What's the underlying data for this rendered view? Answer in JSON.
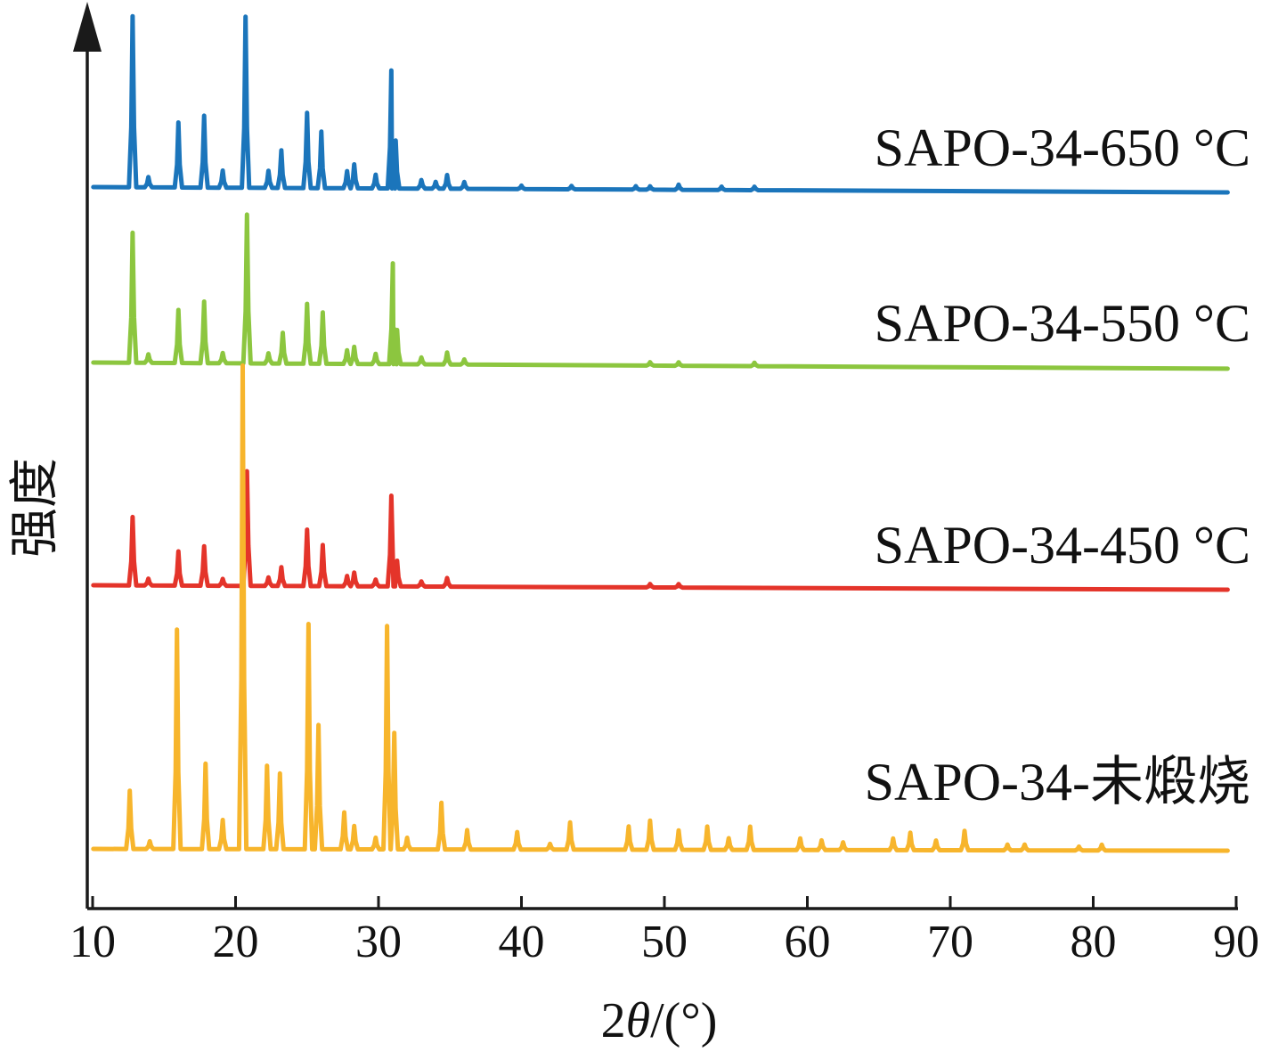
{
  "chart_data": {
    "type": "line",
    "title": "",
    "xlabel": "2θ/(°)",
    "xlabel_parts": {
      "prefix": "2",
      "symbol": "θ",
      "suffix": "/(°)"
    },
    "ylabel": "强度",
    "xlim": [
      10,
      90
    ],
    "x_ticks": [
      10,
      20,
      30,
      40,
      50,
      60,
      70,
      80,
      90
    ],
    "y_ticks_shown": false,
    "grid": false,
    "legend": "series labels printed at the right end of each curve",
    "series": [
      {
        "name": "SAPO-34-650 °C",
        "color": "#1b75bb",
        "peaks": [
          [
            12.8,
            1.0
          ],
          [
            13.9,
            0.06
          ],
          [
            16.0,
            0.38
          ],
          [
            17.8,
            0.42
          ],
          [
            19.1,
            0.1
          ],
          [
            20.7,
            1.0
          ],
          [
            22.3,
            0.1
          ],
          [
            23.2,
            0.22
          ],
          [
            25.0,
            0.44
          ],
          [
            26.0,
            0.33
          ],
          [
            27.8,
            0.1
          ],
          [
            28.3,
            0.14
          ],
          [
            29.8,
            0.08
          ],
          [
            30.9,
            0.69
          ],
          [
            31.2,
            0.28
          ],
          [
            33.0,
            0.05
          ],
          [
            34.0,
            0.04
          ],
          [
            34.8,
            0.08
          ],
          [
            36.0,
            0.04
          ],
          [
            40.0,
            0.02
          ],
          [
            43.5,
            0.02
          ],
          [
            48.0,
            0.02
          ],
          [
            49.0,
            0.02
          ],
          [
            51.0,
            0.03
          ],
          [
            54.0,
            0.02
          ],
          [
            56.3,
            0.02
          ]
        ]
      },
      {
        "name": "SAPO-34-550 °C",
        "color": "#8cc63f",
        "peaks": [
          [
            12.8,
            0.76
          ],
          [
            13.9,
            0.05
          ],
          [
            16.0,
            0.31
          ],
          [
            17.8,
            0.36
          ],
          [
            19.1,
            0.06
          ],
          [
            20.8,
            0.87
          ],
          [
            22.3,
            0.06
          ],
          [
            23.3,
            0.18
          ],
          [
            25.0,
            0.35
          ],
          [
            26.1,
            0.3
          ],
          [
            27.8,
            0.08
          ],
          [
            28.3,
            0.1
          ],
          [
            29.8,
            0.06
          ],
          [
            31.0,
            0.59
          ],
          [
            31.3,
            0.2
          ],
          [
            33.0,
            0.04
          ],
          [
            34.8,
            0.07
          ],
          [
            36.0,
            0.03
          ],
          [
            49.0,
            0.02
          ],
          [
            51.0,
            0.02
          ],
          [
            56.3,
            0.02
          ]
        ]
      },
      {
        "name": "SAPO-34-450 °C",
        "color": "#e4342a",
        "peaks": [
          [
            12.8,
            0.4
          ],
          [
            13.9,
            0.04
          ],
          [
            16.0,
            0.2
          ],
          [
            17.8,
            0.23
          ],
          [
            19.1,
            0.04
          ],
          [
            20.8,
            0.67
          ],
          [
            22.3,
            0.05
          ],
          [
            23.2,
            0.11
          ],
          [
            25.0,
            0.33
          ],
          [
            26.1,
            0.24
          ],
          [
            27.8,
            0.06
          ],
          [
            28.3,
            0.08
          ],
          [
            29.8,
            0.04
          ],
          [
            30.9,
            0.53
          ],
          [
            31.3,
            0.15
          ],
          [
            33.0,
            0.03
          ],
          [
            34.8,
            0.05
          ],
          [
            49.0,
            0.02
          ],
          [
            51.0,
            0.02
          ]
        ]
      },
      {
        "name": "SAPO-34-未煅烧",
        "color": "#f7b52c",
        "peaks": [
          [
            12.6,
            0.3
          ],
          [
            14.0,
            0.04
          ],
          [
            15.9,
            1.13
          ],
          [
            17.9,
            0.44
          ],
          [
            19.1,
            0.15
          ],
          [
            20.5,
            2.49
          ],
          [
            22.2,
            0.43
          ],
          [
            23.1,
            0.39
          ],
          [
            25.1,
            1.16
          ],
          [
            25.8,
            0.64
          ],
          [
            27.6,
            0.19
          ],
          [
            28.3,
            0.12
          ],
          [
            29.8,
            0.06
          ],
          [
            30.6,
            1.15
          ],
          [
            31.1,
            0.6
          ],
          [
            32.0,
            0.06
          ],
          [
            34.4,
            0.24
          ],
          [
            36.2,
            0.1
          ],
          [
            39.7,
            0.09
          ],
          [
            42.0,
            0.03
          ],
          [
            43.4,
            0.14
          ],
          [
            47.5,
            0.12
          ],
          [
            49.0,
            0.15
          ],
          [
            51.0,
            0.1
          ],
          [
            53.0,
            0.12
          ],
          [
            54.5,
            0.06
          ],
          [
            56.0,
            0.12
          ],
          [
            59.5,
            0.06
          ],
          [
            61.0,
            0.05
          ],
          [
            62.5,
            0.04
          ],
          [
            66.0,
            0.06
          ],
          [
            67.2,
            0.09
          ],
          [
            69.0,
            0.05
          ],
          [
            71.0,
            0.1
          ],
          [
            74.0,
            0.03
          ],
          [
            75.2,
            0.03
          ],
          [
            79.0,
            0.02
          ],
          [
            80.6,
            0.03
          ]
        ]
      }
    ]
  }
}
